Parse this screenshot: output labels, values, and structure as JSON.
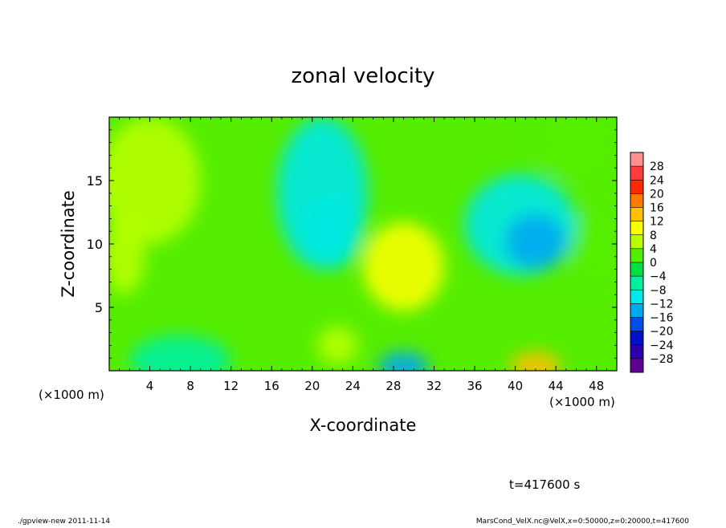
{
  "chart_data": {
    "type": "heatmap",
    "title": "zonal velocity",
    "xlabel": "X-coordinate",
    "ylabel": "Z-coordinate",
    "x_unit_label_left": "(×1000 m)",
    "x_unit_label_right": "(×1000 m)",
    "xlim": [
      0,
      50
    ],
    "ylim": [
      0,
      20
    ],
    "x_ticks": [
      4,
      8,
      12,
      16,
      20,
      24,
      28,
      32,
      36,
      40,
      44,
      48
    ],
    "y_ticks": [
      5,
      10,
      15
    ],
    "time_label": "t=417600 s",
    "colorbar": {
      "levels": [
        "28",
        "24",
        "20",
        "16",
        "12",
        "8",
        "4",
        "0",
        "−4",
        "−8",
        "−12",
        "−16",
        "−20",
        "−24",
        "−28"
      ],
      "colors": [
        "#ff9090",
        "#ff3b3b",
        "#ff2a00",
        "#ff7a00",
        "#ffc000",
        "#f8ff00",
        "#b8ff00",
        "#55ee00",
        "#00e040",
        "#00f0a0",
        "#00e8e8",
        "#00a8f0",
        "#0050e8",
        "#0010c8",
        "#2a00a8",
        "#600090"
      ]
    },
    "blobs": [
      {
        "x": 29,
        "z": 8.2,
        "value": 9,
        "rx": 4,
        "rz": 3.5
      },
      {
        "x": 42,
        "z": 10.2,
        "value": -14,
        "rx": 3,
        "rz": 2.2
      },
      {
        "x": 40.5,
        "z": 11.5,
        "value": -8,
        "rx": 5.5,
        "rz": 4
      },
      {
        "x": 21,
        "z": 14,
        "value": -8,
        "rx": 4.5,
        "rz": 6
      },
      {
        "x": 22,
        "z": 11,
        "value": -5,
        "rx": 3,
        "rz": 3
      },
      {
        "x": 29,
        "z": 0.3,
        "value": -13,
        "rx": 2.5,
        "rz": 1.2
      },
      {
        "x": 42,
        "z": 0.3,
        "value": 14,
        "rx": 2.5,
        "rz": 1.2
      },
      {
        "x": 7,
        "z": 0.8,
        "value": -6,
        "rx": 5,
        "rz": 2
      },
      {
        "x": 4,
        "z": 15,
        "value": 6,
        "rx": 5,
        "rz": 5
      },
      {
        "x": 1.5,
        "z": 9,
        "value": 5,
        "rx": 2,
        "rz": 3
      },
      {
        "x": 22.5,
        "z": 2,
        "value": 7,
        "rx": 2,
        "rz": 1.5
      },
      {
        "x": 46,
        "z": 18,
        "value": 3,
        "rx": 4,
        "rz": 3
      },
      {
        "x": 48,
        "z": 10,
        "value": 3,
        "rx": 3,
        "rz": 3
      }
    ]
  },
  "footer": {
    "left": "./gpview-new  2011-11-14",
    "right": "MarsCond_VelX.nc@VelX,x=0:50000,z=0:20000,t=417600"
  }
}
